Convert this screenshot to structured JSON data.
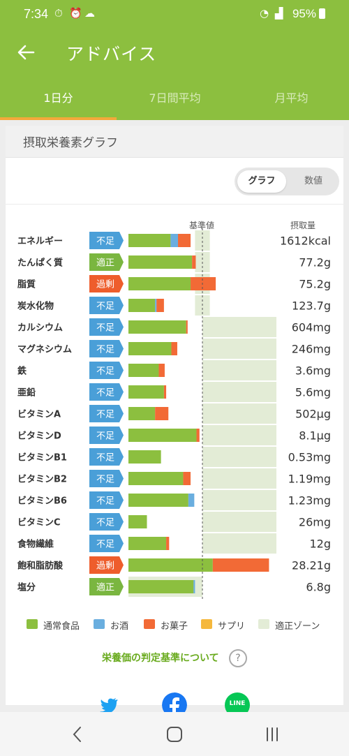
{
  "status_bar": {
    "time": "7:34",
    "battery": "95%"
  },
  "app_bar": {
    "title": "アドバイス"
  },
  "tabs": [
    {
      "label": "1日分",
      "active": true
    },
    {
      "label": "7日間平均",
      "active": false
    },
    {
      "label": "月平均",
      "active": false
    }
  ],
  "panel": {
    "title": "摂取栄養素グラフ"
  },
  "toggle": {
    "graph": "グラフ",
    "numeric": "数値"
  },
  "columns": {
    "reference": "基準値",
    "intake": "摂取量"
  },
  "status_colors": {
    "不足": "#4a9fd8",
    "適正": "#7ab640",
    "過剰": "#ee5d2c"
  },
  "colors": {
    "food": "#8cbf3f",
    "alcohol": "#6aaedf",
    "sweets": "#f26a36",
    "supplement": "#f5b83d",
    "zone": "#e3ecd6"
  },
  "chart_data": {
    "type": "bar",
    "orientation": "horizontal",
    "stacked": true,
    "unit": "% of reference value",
    "reference_line": 100,
    "categories": [
      "エネルギー",
      "たんぱく質",
      "脂質",
      "炭水化物",
      "カルシウム",
      "マグネシウム",
      "鉄",
      "亜鉛",
      "ビタミンA",
      "ビタミンD",
      "ビタミンB1",
      "ビタミンB2",
      "ビタミンB6",
      "ビタミンC",
      "食物繊維",
      "飽和脂肪酸",
      "塩分"
    ],
    "status": [
      "不足",
      "適正",
      "過剰",
      "不足",
      "不足",
      "不足",
      "不足",
      "不足",
      "不足",
      "不足",
      "不足",
      "不足",
      "不足",
      "不足",
      "不足",
      "過剰",
      "適正"
    ],
    "intake_labels": [
      "1612kcal",
      "77.2g",
      "75.2g",
      "123.7g",
      "604mg",
      "246mg",
      "3.6mg",
      "5.6mg",
      "502μg",
      "8.1μg",
      "0.53mg",
      "1.19mg",
      "1.23mg",
      "26mg",
      "12g",
      "28.21g",
      "6.8g"
    ],
    "series": [
      {
        "name": "通常食品",
        "values": [
          57,
          86,
          84,
          36,
          78,
          58,
          41,
          48,
          36,
          92,
          44,
          74,
          81,
          25,
          51,
          114,
          88
        ]
      },
      {
        "name": "お酒",
        "values": [
          10,
          0,
          0,
          2,
          0,
          0,
          0,
          0,
          0,
          0,
          0,
          0,
          8,
          0,
          0,
          0,
          2
        ]
      },
      {
        "name": "お菓子",
        "values": [
          17,
          5,
          34,
          10,
          2,
          8,
          8,
          3,
          18,
          4,
          0,
          10,
          0,
          0,
          4,
          76,
          0
        ]
      },
      {
        "name": "サプリ",
        "values": [
          0,
          0,
          0,
          0,
          0,
          0,
          0,
          0,
          0,
          0,
          0,
          0,
          0,
          0,
          0,
          0,
          0
        ]
      }
    ],
    "zones": [
      [
        90,
        110
      ],
      [
        90,
        110
      ],
      [
        90,
        110
      ],
      [
        90,
        110
      ],
      [
        100,
        200
      ],
      [
        100,
        200
      ],
      [
        100,
        200
      ],
      [
        100,
        200
      ],
      [
        100,
        200
      ],
      [
        100,
        200
      ],
      [
        100,
        200
      ],
      [
        100,
        200
      ],
      [
        100,
        200
      ],
      [
        100,
        200
      ],
      [
        100,
        200
      ],
      [
        0,
        0
      ],
      [
        0,
        100
      ]
    ],
    "legend": [
      "通常食品",
      "お酒",
      "お菓子",
      "サプリ",
      "適正ゾーン"
    ]
  },
  "criteria_link": "栄養価の判定基準について",
  "share": {
    "twitter": "twitter-icon",
    "facebook": "facebook-icon",
    "line": "LINE"
  }
}
